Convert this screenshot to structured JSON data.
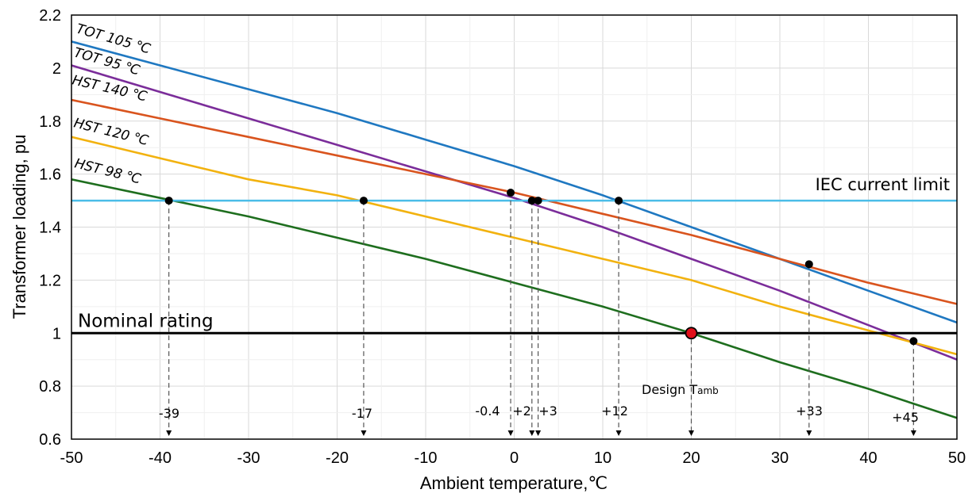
{
  "chart_data": {
    "type": "line",
    "title": "",
    "xlabel": "Ambient temperature,℃",
    "ylabel": "Transformer loading, pu",
    "xlim": [
      -50,
      50
    ],
    "ylim": [
      0.6,
      2.2
    ],
    "xticks": [
      -50,
      -40,
      -30,
      -20,
      -10,
      0,
      10,
      20,
      30,
      40,
      50
    ],
    "yticks": [
      0.6,
      0.8,
      1,
      1.2,
      1.4,
      1.6,
      1.8,
      2,
      2.2
    ],
    "xtick_labels": [
      "-50",
      "-40",
      "-30",
      "-20",
      "-10",
      "0",
      "10",
      "20",
      "30",
      "40",
      "50"
    ],
    "ytick_labels": [
      "0.6",
      "0.8",
      "1",
      "1.2",
      "1.4",
      "1.6",
      "1.8",
      "2",
      "2.2"
    ],
    "grid": true,
    "series": [
      {
        "name": "TOT 105 ℃",
        "color": "#1f78c1",
        "label_text": "TOT 105 ℃",
        "x": [
          -50,
          -40,
          -30,
          -20,
          -10,
          0,
          10,
          20,
          30,
          40,
          50
        ],
        "y": [
          2.1,
          2.01,
          1.92,
          1.83,
          1.73,
          1.63,
          1.52,
          1.4,
          1.28,
          1.16,
          1.04
        ]
      },
      {
        "name": "TOT 95 ℃",
        "color": "#7b2d9a",
        "label_text": "TOT 95 ℃",
        "x": [
          -50,
          -40,
          -30,
          -20,
          -10,
          0,
          10,
          20,
          30,
          40,
          50
        ],
        "y": [
          2.01,
          1.91,
          1.81,
          1.71,
          1.61,
          1.51,
          1.4,
          1.28,
          1.16,
          1.03,
          0.9
        ]
      },
      {
        "name": "HST 140 ℃",
        "color": "#d9541e",
        "label_text": "HST 140 ℃",
        "x": [
          -50,
          -40,
          -30,
          -20,
          -10,
          0,
          10,
          20,
          30,
          40,
          50
        ],
        "y": [
          1.88,
          1.81,
          1.74,
          1.67,
          1.6,
          1.53,
          1.45,
          1.37,
          1.28,
          1.19,
          1.11
        ]
      },
      {
        "name": "HST 120 ℃",
        "color": "#f2b20f",
        "label_text": "HST 120 ℃",
        "x": [
          -50,
          -40,
          -30,
          -20,
          -10,
          0,
          10,
          20,
          30,
          40,
          50
        ],
        "y": [
          1.74,
          1.66,
          1.58,
          1.52,
          1.44,
          1.36,
          1.28,
          1.2,
          1.1,
          1.01,
          0.92
        ]
      },
      {
        "name": "HST 98 ℃",
        "color": "#1e6e1e",
        "label_text": "HST 98 ℃",
        "x": [
          -50,
          -40,
          -30,
          -20,
          -10,
          0,
          10,
          20,
          30,
          40,
          50
        ],
        "y": [
          1.58,
          1.51,
          1.44,
          1.36,
          1.28,
          1.19,
          1.1,
          1.0,
          0.89,
          0.79,
          0.68
        ]
      }
    ],
    "reference_lines": [
      {
        "label": "IEC current limit",
        "y": 1.5,
        "color": "#4bbde8"
      },
      {
        "label": "Nominal rating",
        "y": 1.0,
        "color": "#000000"
      }
    ],
    "markers": [
      {
        "x": -39,
        "y": 1.5,
        "label": "-39"
      },
      {
        "x": -17,
        "y": 1.5,
        "label": "-17"
      },
      {
        "x": -0.4,
        "y": 1.53,
        "label": "-0.4"
      },
      {
        "x": 2,
        "y": 1.5,
        "label": "+2"
      },
      {
        "x": 2.7,
        "y": 1.5,
        "label": "+3"
      },
      {
        "x": 11.8,
        "y": 1.5,
        "label": "+12"
      },
      {
        "x": 33.3,
        "y": 1.26,
        "label": "+33"
      },
      {
        "x": 45.1,
        "y": 0.97,
        "label": "+45"
      }
    ],
    "design_point": {
      "x": 20,
      "y": 1.0,
      "label": "Design T",
      "label_sub": "amb",
      "color": "#e0101a"
    }
  }
}
